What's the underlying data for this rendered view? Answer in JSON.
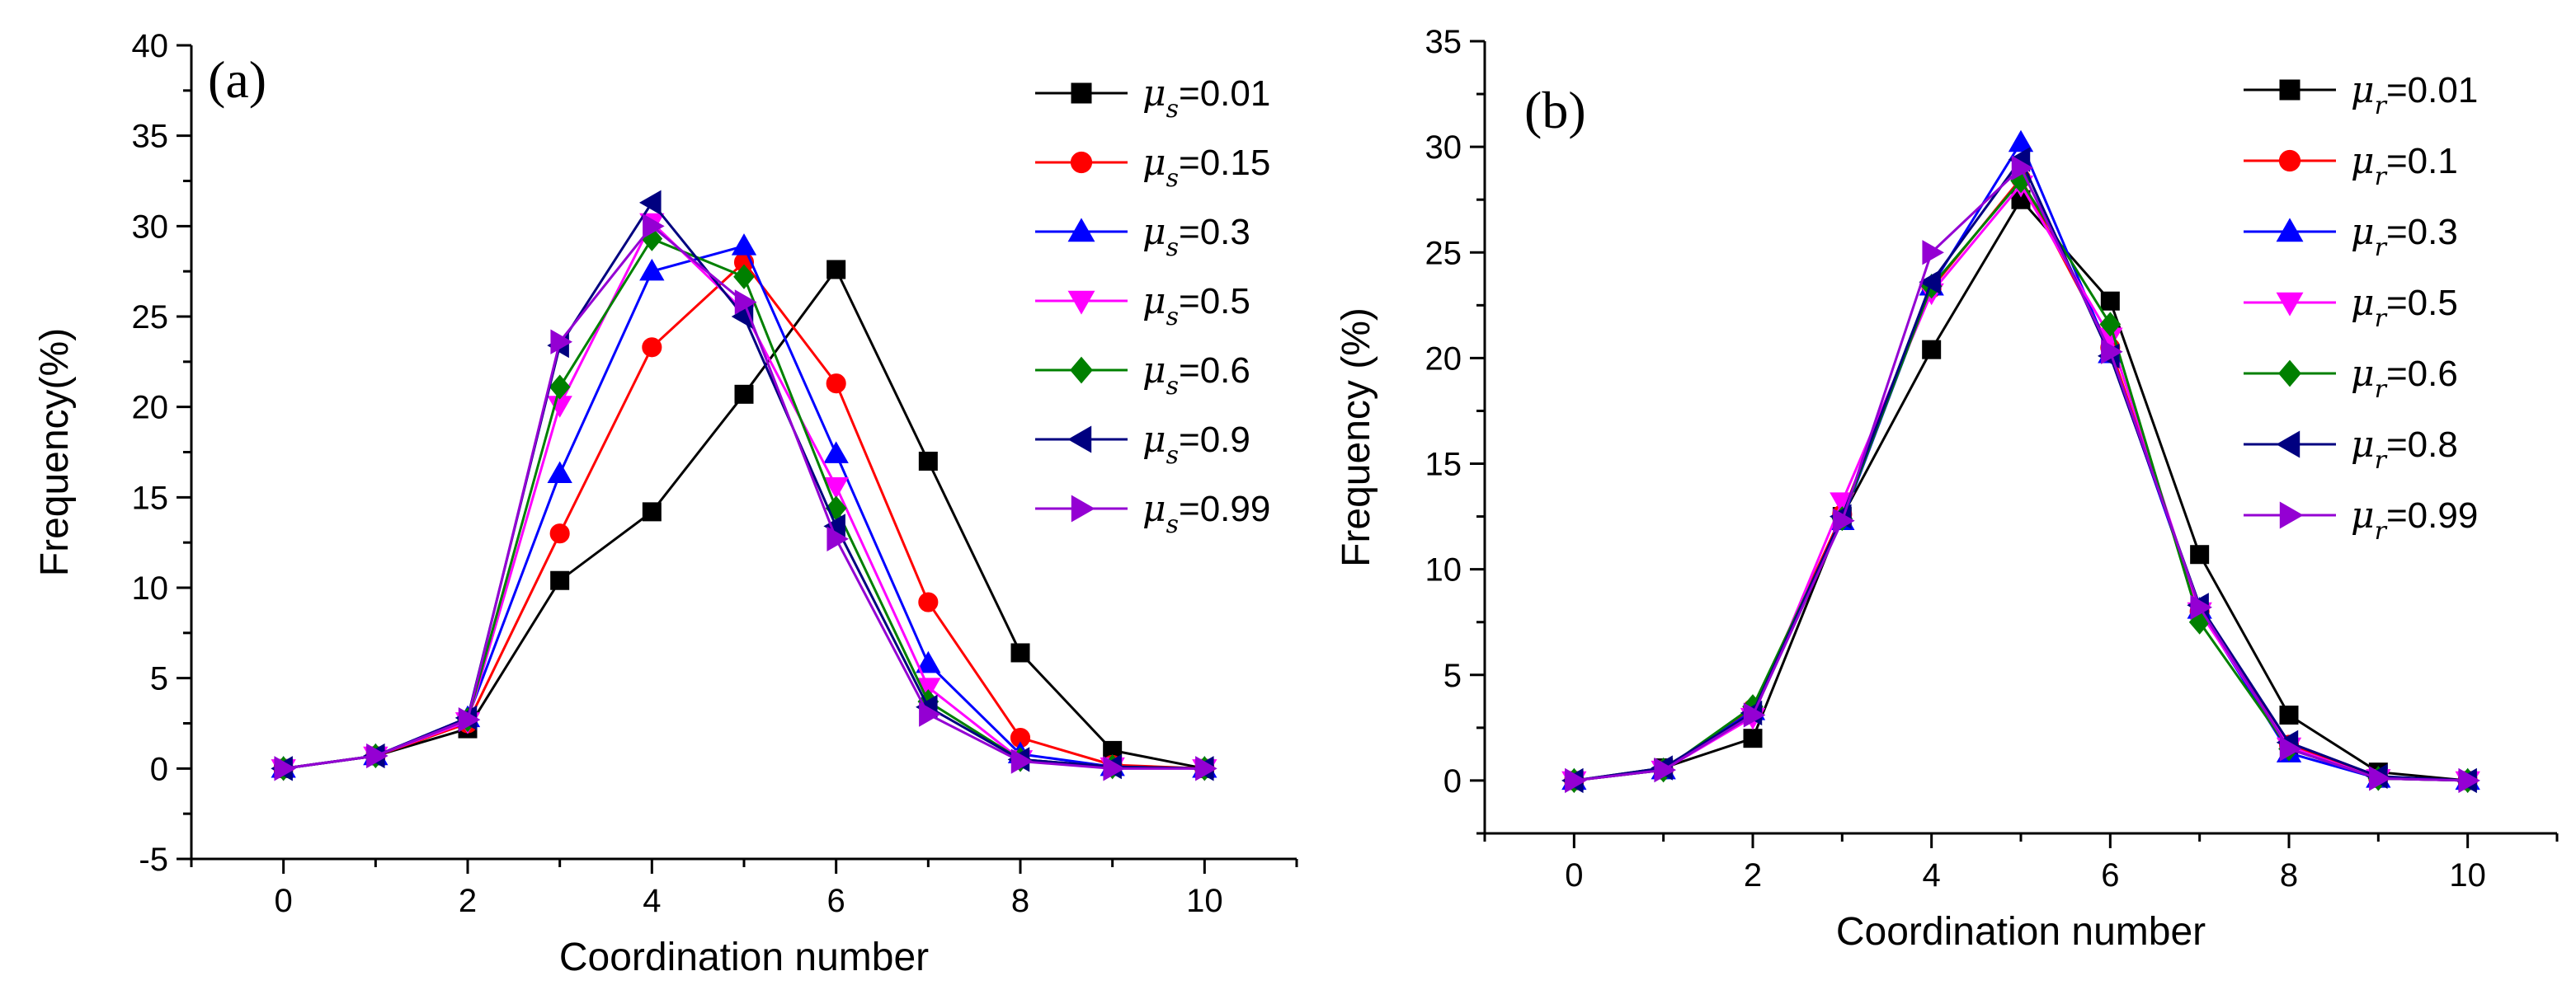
{
  "chart_data": [
    {
      "type": "line",
      "panel_label": "(a)",
      "xlabel": "Coordination number",
      "ylabel": "Frequency(%)",
      "xlim": [
        -1,
        11
      ],
      "ylim": [
        -5,
        40
      ],
      "xticks": [
        0,
        2,
        4,
        6,
        8,
        10
      ],
      "yticks": [
        -5,
        0,
        5,
        10,
        15,
        20,
        25,
        30,
        35,
        40
      ],
      "legend_position": "top-right",
      "legend_symbol": "μ",
      "legend_subscript": "s",
      "x": [
        0,
        1,
        2,
        3,
        4,
        5,
        6,
        7,
        8,
        9,
        10
      ],
      "series": [
        {
          "name": "=0.01",
          "color": "#000000",
          "marker": "square",
          "values": [
            0,
            0.7,
            2.2,
            10.4,
            14.2,
            20.7,
            27.6,
            17.0,
            6.4,
            1.0,
            0
          ]
        },
        {
          "name": "=0.15",
          "color": "#ff0000",
          "marker": "circle",
          "values": [
            0,
            0.7,
            2.5,
            13.0,
            23.3,
            28.0,
            21.3,
            9.2,
            1.7,
            0.2,
            0
          ]
        },
        {
          "name": "=0.3",
          "color": "#0000ff",
          "marker": "triangle-up",
          "values": [
            0,
            0.7,
            2.8,
            16.3,
            27.5,
            28.9,
            17.4,
            5.8,
            0.8,
            0.1,
            0
          ]
        },
        {
          "name": "=0.5",
          "color": "#ff00ff",
          "marker": "triangle-down",
          "values": [
            0,
            0.7,
            2.6,
            20.1,
            30.2,
            25.3,
            15.6,
            4.5,
            0.5,
            0.1,
            0
          ]
        },
        {
          "name": "=0.6",
          "color": "#008000",
          "marker": "diamond",
          "values": [
            0,
            0.7,
            2.7,
            21.1,
            29.3,
            27.2,
            14.4,
            3.7,
            0.5,
            0.1,
            0
          ]
        },
        {
          "name": "=0.9",
          "color": "#000080",
          "marker": "triangle-left",
          "values": [
            0,
            0.7,
            2.8,
            23.4,
            31.3,
            25.0,
            13.4,
            3.4,
            0.5,
            0.1,
            0
          ]
        },
        {
          "name": "=0.99",
          "color": "#9400d3",
          "marker": "triangle-right",
          "values": [
            0,
            0.7,
            2.7,
            23.6,
            30.0,
            25.8,
            12.7,
            3.0,
            0.4,
            0.0,
            0
          ]
        }
      ]
    },
    {
      "type": "line",
      "panel_label": "(b)",
      "xlabel": "Coordination number",
      "ylabel": "Frequency (%)",
      "xlim": [
        -1,
        11
      ],
      "ylim": [
        -2.5,
        35
      ],
      "xticks": [
        0,
        2,
        4,
        6,
        8,
        10
      ],
      "yticks": [
        0,
        5,
        10,
        15,
        20,
        25,
        30,
        35
      ],
      "legend_position": "top-right",
      "legend_symbol": "μ",
      "legend_subscript": "r",
      "x": [
        0,
        1,
        2,
        3,
        4,
        5,
        6,
        7,
        8,
        9,
        10
      ],
      "series": [
        {
          "name": "=0.01",
          "color": "#000000",
          "marker": "square",
          "values": [
            0,
            0.6,
            2.0,
            12.5,
            20.4,
            27.5,
            22.7,
            10.7,
            3.1,
            0.4,
            0
          ]
        },
        {
          "name": "=0.1",
          "color": "#ff0000",
          "marker": "circle",
          "values": [
            0,
            0.5,
            3.4,
            12.6,
            23.3,
            28.5,
            20.5,
            8.0,
            1.7,
            0.1,
            0
          ]
        },
        {
          "name": "=0.3",
          "color": "#0000ff",
          "marker": "triangle-up",
          "values": [
            0,
            0.5,
            3.3,
            12.3,
            23.4,
            30.2,
            20.2,
            8.1,
            1.3,
            0.1,
            0
          ]
        },
        {
          "name": "=0.5",
          "color": "#ff00ff",
          "marker": "triangle-down",
          "values": [
            0,
            0.5,
            3.0,
            13.2,
            23.1,
            28.2,
            21.0,
            8.0,
            1.6,
            0.1,
            0
          ]
        },
        {
          "name": "=0.6",
          "color": "#008000",
          "marker": "diamond",
          "values": [
            0,
            0.5,
            3.5,
            12.4,
            23.4,
            28.4,
            21.6,
            7.5,
            1.5,
            0.1,
            0
          ]
        },
        {
          "name": "=0.8",
          "color": "#000080",
          "marker": "triangle-left",
          "values": [
            0,
            0.6,
            3.2,
            12.5,
            23.6,
            29.4,
            20.1,
            8.3,
            1.8,
            0.2,
            0
          ]
        },
        {
          "name": "=0.99",
          "color": "#9400d3",
          "marker": "triangle-right",
          "values": [
            0,
            0.5,
            3.1,
            12.3,
            25.0,
            29.0,
            20.3,
            8.2,
            1.5,
            0.1,
            0
          ]
        }
      ]
    }
  ]
}
